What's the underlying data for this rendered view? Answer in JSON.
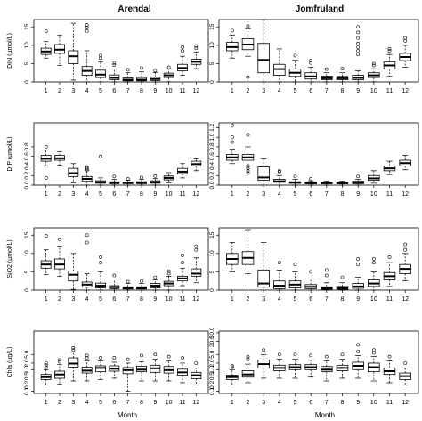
{
  "page": {
    "col_titles": [
      "Arendal",
      "Jomfruland"
    ],
    "xlabel": "Month"
  },
  "chart_data": [
    {
      "type": "box",
      "panel": "DIN-Arendal",
      "title": "Arendal",
      "ylabel": "DIN (µmol/L)",
      "xlabel": "",
      "ylim": [
        0,
        17
      ],
      "yticks": [
        0,
        5,
        10,
        15
      ],
      "log": false,
      "x": [
        1,
        2,
        3,
        4,
        5,
        6,
        7,
        8,
        9,
        10,
        11,
        12
      ],
      "q1": [
        7.5,
        7.8,
        5.0,
        1.8,
        1.2,
        0.6,
        0.3,
        0.3,
        0.4,
        1.2,
        3.0,
        4.8
      ],
      "median": [
        8.3,
        8.8,
        7.0,
        3.0,
        2.0,
        1.1,
        0.6,
        0.6,
        0.8,
        1.8,
        3.8,
        5.5
      ],
      "q3": [
        9.2,
        10.2,
        8.5,
        4.2,
        3.2,
        1.9,
        1.1,
        1.2,
        1.3,
        2.4,
        4.8,
        6.2
      ],
      "whisker_low": [
        6.5,
        4.5,
        0.5,
        0.0,
        0.0,
        0.0,
        0.0,
        0.0,
        0.0,
        0.0,
        1.8,
        3.6
      ],
      "whisker_high": [
        11.0,
        12.8,
        16.0,
        8.5,
        5.5,
        3.5,
        2.5,
        2.8,
        2.6,
        3.5,
        7.0,
        8.2
      ],
      "outliers": [
        [
          13.8
        ],
        [],
        [],
        [
          15.5,
          14.8,
          13.9
        ],
        [
          7.2,
          6.5
        ],
        [
          5.2,
          4.6
        ],
        [
          3.3
        ],
        [
          3.8
        ],
        [
          3.1
        ],
        [
          4.0
        ],
        [
          9.5,
          8.5
        ],
        [
          9.8,
          9.2
        ]
      ]
    },
    {
      "type": "box",
      "panel": "DIN-Jomfruland",
      "title": "Jomfruland",
      "ylabel": "",
      "xlabel": "",
      "ylim": [
        0,
        17
      ],
      "yticks": [
        0,
        5,
        10,
        15
      ],
      "log": false,
      "x": [
        1,
        2,
        3,
        4,
        5,
        6,
        7,
        8,
        9,
        10,
        11,
        12
      ],
      "q1": [
        8.5,
        8.8,
        2.5,
        1.8,
        1.5,
        0.8,
        0.6,
        0.6,
        0.6,
        1.2,
        3.5,
        5.8
      ],
      "median": [
        9.5,
        10.2,
        6.0,
        3.5,
        2.5,
        1.5,
        1.0,
        1.0,
        1.1,
        1.8,
        4.5,
        6.8
      ],
      "q3": [
        10.8,
        11.8,
        10.5,
        4.8,
        3.5,
        2.5,
        1.6,
        1.5,
        1.8,
        2.5,
        5.5,
        7.8
      ],
      "whisker_low": [
        6.5,
        7.0,
        0.0,
        0.0,
        0.0,
        0.0,
        0.0,
        0.0,
        0.0,
        0.0,
        1.5,
        4.0
      ],
      "whisker_high": [
        12.8,
        14.5,
        17.0,
        9.0,
        6.0,
        4.0,
        2.5,
        2.5,
        3.0,
        3.6,
        7.5,
        10.0
      ],
      "outliers": [
        [
          14.0
        ],
        [
          15.2,
          1.3
        ],
        [],
        [],
        [
          7.2
        ],
        [
          5.8,
          5.2
        ],
        [
          3.5
        ],
        [
          3.6
        ],
        [
          15.0,
          13.5,
          12.0,
          10.5,
          9.5,
          8.5,
          7.5
        ],
        [
          5.0,
          4.5
        ],
        [
          8.5,
          9.0
        ],
        [
          12.0,
          11.2
        ]
      ]
    },
    {
      "type": "box",
      "panel": "DIP-Arendal",
      "title": "",
      "ylabel": "DIP (µmol/L)",
      "xlabel": "",
      "ylim": [
        0,
        1.3
      ],
      "yticks": [
        0.0,
        0.2,
        0.4,
        0.6,
        0.8
      ],
      "log": false,
      "x": [
        1,
        2,
        3,
        4,
        5,
        6,
        7,
        8,
        9,
        10,
        11,
        12
      ],
      "q1": [
        0.5,
        0.52,
        0.18,
        0.08,
        0.04,
        0.03,
        0.03,
        0.03,
        0.04,
        0.11,
        0.24,
        0.4
      ],
      "median": [
        0.55,
        0.56,
        0.25,
        0.13,
        0.06,
        0.05,
        0.05,
        0.05,
        0.06,
        0.15,
        0.28,
        0.44
      ],
      "q3": [
        0.62,
        0.62,
        0.35,
        0.18,
        0.09,
        0.07,
        0.06,
        0.07,
        0.09,
        0.19,
        0.35,
        0.5
      ],
      "whisker_low": [
        0.4,
        0.42,
        0.05,
        0.0,
        0.0,
        0.0,
        0.0,
        0.0,
        0.0,
        0.05,
        0.15,
        0.3
      ],
      "whisker_high": [
        0.73,
        0.7,
        0.45,
        0.3,
        0.15,
        0.12,
        0.1,
        0.12,
        0.14,
        0.26,
        0.45,
        0.55
      ],
      "outliers": [
        [
          0.8,
          0.15
        ],
        [],
        [],
        [
          0.38,
          0.35,
          0.32
        ],
        [
          0.6
        ],
        [
          0.18
        ],
        [
          0.13
        ],
        [
          0.16
        ],
        [
          0.19
        ],
        [],
        [],
        []
      ]
    },
    {
      "type": "box",
      "panel": "DIP-Jomfruland",
      "title": "",
      "ylabel": "",
      "xlabel": "",
      "ylim": [
        0,
        1.3
      ],
      "yticks": [
        0.0,
        0.2,
        0.4,
        0.6,
        0.8,
        1.0,
        1.2
      ],
      "log": false,
      "x": [
        1,
        2,
        3,
        4,
        5,
        6,
        7,
        8,
        9,
        10,
        11,
        12
      ],
      "q1": [
        0.52,
        0.52,
        0.1,
        0.06,
        0.04,
        0.03,
        0.03,
        0.03,
        0.03,
        0.1,
        0.3,
        0.4
      ],
      "median": [
        0.58,
        0.58,
        0.16,
        0.08,
        0.05,
        0.04,
        0.04,
        0.04,
        0.05,
        0.14,
        0.35,
        0.46
      ],
      "q3": [
        0.64,
        0.64,
        0.38,
        0.12,
        0.07,
        0.06,
        0.05,
        0.05,
        0.08,
        0.2,
        0.4,
        0.52
      ],
      "whisker_low": [
        0.45,
        0.4,
        0.0,
        0.0,
        0.0,
        0.0,
        0.0,
        0.0,
        0.0,
        0.04,
        0.22,
        0.32
      ],
      "whisker_high": [
        0.75,
        0.8,
        0.55,
        0.2,
        0.12,
        0.09,
        0.08,
        0.08,
        0.12,
        0.3,
        0.5,
        0.62
      ],
      "outliers": [
        [
          1.25,
          1.0,
          0.9
        ],
        [
          1.05,
          0.4,
          0.35,
          0.3,
          0.25
        ],
        [],
        [
          0.3,
          0.28
        ],
        [
          0.18
        ],
        [
          0.13
        ],
        [],
        [],
        [
          0.18
        ],
        [],
        [],
        []
      ]
    },
    {
      "type": "box",
      "panel": "SiO2-Arendal",
      "title": "",
      "ylabel": "SiO2 (µmol/L)",
      "xlabel": "",
      "ylim": [
        0,
        17
      ],
      "yticks": [
        0,
        5,
        10,
        15
      ],
      "log": false,
      "x": [
        1,
        2,
        3,
        4,
        5,
        6,
        7,
        8,
        9,
        10,
        11,
        12
      ],
      "q1": [
        6.0,
        5.8,
        2.5,
        0.8,
        0.6,
        0.4,
        0.3,
        0.3,
        0.6,
        1.2,
        2.5,
        3.8
      ],
      "median": [
        7.0,
        7.0,
        4.2,
        1.5,
        1.2,
        0.8,
        0.6,
        0.6,
        1.2,
        1.8,
        3.2,
        4.5
      ],
      "q3": [
        8.0,
        8.5,
        5.2,
        2.2,
        1.9,
        1.2,
        0.9,
        0.9,
        1.8,
        2.4,
        3.8,
        5.8
      ],
      "whisker_low": [
        4.2,
        3.8,
        0.2,
        0.0,
        0.0,
        0.0,
        0.0,
        0.0,
        0.0,
        0.0,
        1.2,
        2.0
      ],
      "whisker_high": [
        11.0,
        12.0,
        10.0,
        4.5,
        5.0,
        3.0,
        1.8,
        1.8,
        2.8,
        3.8,
        6.0,
        8.8
      ],
      "outliers": [
        [
          14.8
        ],
        [
          13.9
        ],
        [],
        [
          15.0,
          13.0
        ],
        [
          9.0,
          7.5
        ],
        [
          4.0
        ],
        [
          2.3
        ],
        [
          2.5
        ],
        [
          3.5
        ],
        [
          4.5,
          5.2
        ],
        [
          9.5,
          7.5
        ],
        [
          12.0,
          11.0
        ]
      ]
    },
    {
      "type": "box",
      "panel": "SiO2-Jomfruland",
      "title": "",
      "ylabel": "",
      "xlabel": "",
      "ylim": [
        0,
        17
      ],
      "yticks": [
        0,
        5,
        10,
        15
      ],
      "log": false,
      "x": [
        1,
        2,
        3,
        4,
        5,
        6,
        7,
        8,
        9,
        10,
        11,
        12
      ],
      "q1": [
        7.0,
        7.0,
        0.8,
        0.4,
        0.6,
        0.4,
        0.2,
        0.2,
        0.5,
        1.0,
        2.8,
        4.5
      ],
      "median": [
        8.5,
        8.8,
        1.8,
        1.2,
        1.5,
        0.9,
        0.5,
        0.5,
        1.0,
        1.8,
        3.8,
        5.8
      ],
      "q3": [
        10.0,
        10.5,
        5.5,
        2.5,
        2.5,
        1.5,
        0.9,
        1.0,
        1.8,
        2.8,
        4.8,
        7.0
      ],
      "whisker_low": [
        5.0,
        4.5,
        0.0,
        0.0,
        0.0,
        0.0,
        0.0,
        0.0,
        0.0,
        0.0,
        1.0,
        2.5
      ],
      "whisker_high": [
        13.0,
        16.5,
        13.0,
        5.5,
        5.0,
        3.0,
        2.0,
        2.0,
        3.5,
        5.0,
        7.5,
        10.0
      ],
      "outliers": [
        [],
        [],
        [],
        [
          7.5
        ],
        [
          7.0
        ],
        [
          5.0
        ],
        [
          5.5,
          4.0
        ],
        [
          3.5
        ],
        [
          8.5,
          7.0
        ],
        [
          8.5,
          7.5
        ],
        [
          9.0
        ],
        [
          12.5,
          11.0
        ]
      ]
    },
    {
      "type": "box",
      "panel": "Chla-Arendal",
      "title": "",
      "ylabel": "Chla (µg/L)",
      "xlabel": "Month",
      "ylim": [
        0.08,
        60
      ],
      "yticks": [
        0.1,
        0.2,
        0.5,
        1.0,
        2.0,
        5.0
      ],
      "log": true,
      "x": [
        1,
        2,
        3,
        4,
        5,
        6,
        7,
        8,
        9,
        10,
        11,
        12
      ],
      "q1": [
        0.35,
        0.4,
        1.3,
        0.7,
        0.8,
        0.85,
        0.65,
        0.8,
        0.75,
        0.7,
        0.55,
        0.38
      ],
      "median": [
        0.45,
        0.6,
        1.9,
        0.9,
        1.2,
        1.1,
        0.95,
        1.0,
        1.15,
        0.95,
        0.75,
        0.55
      ],
      "q3": [
        0.6,
        0.85,
        3.5,
        1.3,
        1.5,
        1.5,
        1.25,
        1.45,
        1.6,
        1.4,
        1.05,
        0.75
      ],
      "whisker_low": [
        0.2,
        0.22,
        0.3,
        0.3,
        0.35,
        0.4,
        0.1,
        0.3,
        0.3,
        0.3,
        0.25,
        0.2
      ],
      "whisker_high": [
        1.0,
        1.7,
        6.5,
        2.5,
        2.5,
        2.2,
        2.0,
        2.3,
        3.0,
        2.5,
        2.0,
        1.2
      ],
      "outliers": [
        [
          2.0,
          1.6,
          1.3
        ],
        [
          2.3,
          2.8
        ],
        [
          10.0,
          8.0
        ],
        [
          4.5,
          3.5
        ],
        [
          3.5
        ],
        [
          3.5
        ],
        [
          3.0
        ],
        [
          4.5
        ],
        [
          5.0
        ],
        [
          4.0
        ],
        [
          3.5
        ],
        [
          2.0
        ]
      ]
    },
    {
      "type": "box",
      "panel": "Chla-Jomfruland",
      "title": "",
      "ylabel": "",
      "xlabel": "Month",
      "ylim": [
        0.08,
        60
      ],
      "yticks": [
        0.1,
        0.2,
        0.5,
        1.0,
        2.0,
        5.0,
        20.0,
        50.0
      ],
      "log": true,
      "x": [
        1,
        2,
        3,
        4,
        5,
        6,
        7,
        8,
        9,
        10,
        11,
        12
      ],
      "q1": [
        0.35,
        0.45,
        1.2,
        0.9,
        1.0,
        1.0,
        0.8,
        0.9,
        1.0,
        0.8,
        0.6,
        0.35
      ],
      "median": [
        0.45,
        0.6,
        1.8,
        1.2,
        1.3,
        1.3,
        1.0,
        1.2,
        1.5,
        1.3,
        0.85,
        0.5
      ],
      "q3": [
        0.55,
        0.9,
        2.8,
        1.6,
        1.7,
        1.7,
        1.4,
        1.6,
        2.2,
        2.0,
        1.2,
        0.7
      ],
      "whisker_low": [
        0.2,
        0.25,
        0.4,
        0.4,
        0.4,
        0.45,
        0.3,
        0.4,
        0.4,
        0.3,
        0.25,
        0.2
      ],
      "whisker_high": [
        1.0,
        1.8,
        5.0,
        3.0,
        3.0,
        2.8,
        2.5,
        3.0,
        4.5,
        4.0,
        2.5,
        1.2
      ],
      "outliers": [
        [
          1.5,
          1.3
        ],
        [
          3.0,
          4.0
        ],
        [
          8.0
        ],
        [
          5.0
        ],
        [
          5.0
        ],
        [
          4.5
        ],
        [
          4.0
        ],
        [
          5.0
        ],
        [
          14.0,
          7.0
        ],
        [
          8.0,
          6.0
        ],
        [
          4.0
        ],
        [
          2.0
        ]
      ]
    }
  ]
}
